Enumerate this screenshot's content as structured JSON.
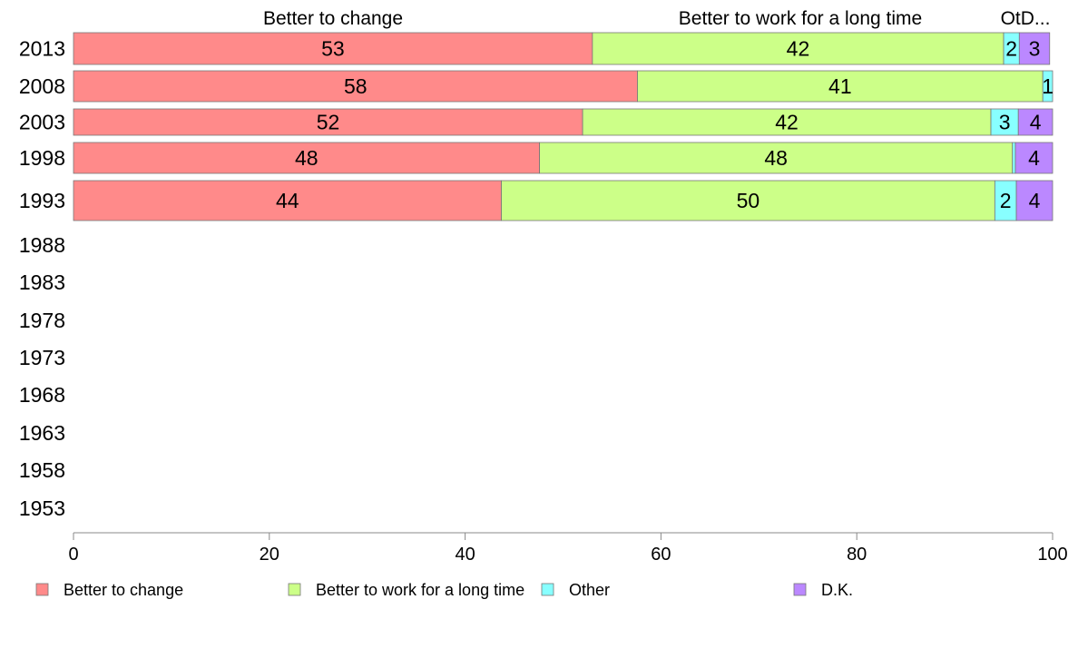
{
  "chart_data": {
    "type": "bar",
    "orientation": "horizontal",
    "stacked": true,
    "categories": [
      "2013",
      "2008",
      "2003",
      "1998",
      "1993",
      "1988",
      "1983",
      "1978",
      "1973",
      "1968",
      "1963",
      "1958",
      "1953"
    ],
    "series": [
      {
        "name": "Better to change",
        "color": "#FF8A8A",
        "values": [
          53,
          57.6,
          52,
          47.6,
          43.7,
          null,
          null,
          null,
          null,
          null,
          null,
          null,
          null
        ],
        "labels": [
          "53",
          "58",
          "52",
          "48",
          "44",
          "",
          "",
          "",
          "",
          "",
          "",
          "",
          ""
        ]
      },
      {
        "name": "Better to work for a long time",
        "color": "#CCFF88",
        "values": [
          42,
          41.4,
          41.7,
          48.3,
          50.4,
          null,
          null,
          null,
          null,
          null,
          null,
          null,
          null
        ],
        "labels": [
          "42",
          "41",
          "42",
          "48",
          "50",
          "",
          "",
          "",
          "",
          "",
          "",
          "",
          ""
        ]
      },
      {
        "name": "Other",
        "color": "#88FFFF",
        "values": [
          1.6,
          1,
          2.8,
          0.3,
          2.2,
          null,
          null,
          null,
          null,
          null,
          null,
          null,
          null
        ],
        "labels": [
          "2",
          "1",
          "3",
          "",
          "2",
          "",
          "",
          "",
          "",
          "",
          "",
          "",
          ""
        ]
      },
      {
        "name": "D.K.",
        "color": "#BB88FF",
        "values": [
          3.1,
          0,
          3.8,
          3.9,
          3.9,
          null,
          null,
          null,
          null,
          null,
          null,
          null,
          null
        ],
        "labels": [
          "3",
          "",
          "4",
          "4",
          "4",
          "",
          "",
          "",
          "",
          "",
          "",
          "",
          ""
        ]
      }
    ],
    "top_labels": [
      "Better to change",
      "Better to work for a long time",
      "OtD..."
    ],
    "x_ticks": [
      "0",
      "20",
      "40",
      "60",
      "80",
      "100"
    ],
    "xlim": [
      0,
      100
    ],
    "grid": false,
    "legend_position": "bottom"
  }
}
